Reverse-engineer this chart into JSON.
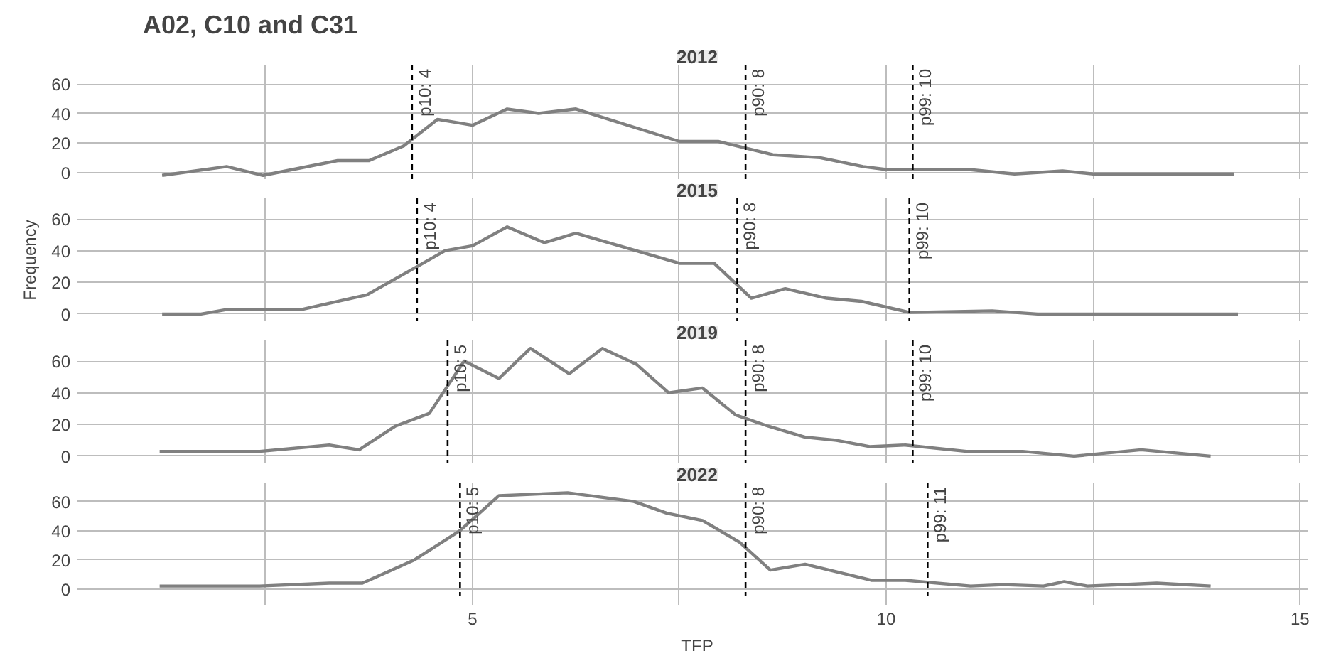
{
  "chart_data": [
    {
      "type": "line",
      "title": "2012",
      "subtitle": "A02, C10 and C31",
      "tick_labels": "y",
      "grid": true,
      "line_style": "solid",
      "color": "#808080",
      "x": [
        1.25,
        2.03,
        2.47,
        3.37,
        3.75,
        4.17,
        4.58,
        5,
        5.42,
        5.8,
        6.25,
        7.5,
        7.97,
        8.63,
        9.2,
        9.72,
        10,
        11,
        11.55,
        12.13,
        12.5,
        14.2
      ],
      "values": [
        -2,
        4,
        -2,
        8,
        8,
        18,
        36,
        32,
        43,
        40,
        43,
        21,
        21,
        12,
        10,
        4,
        2,
        2,
        -1,
        1,
        -1,
        -1
      ],
      "xlim": [
        0.33,
        15.1
      ],
      "xticks": [
        {
          "value": 2.5,
          "label": null
        },
        5,
        {
          "value": 7.5,
          "label": null
        },
        10,
        {
          "value": 12.5,
          "label": null
        },
        15
      ],
      "ylim": [
        -5,
        73
      ],
      "yticks": [
        0,
        20,
        40,
        60
      ],
      "ref_lines": [
        {
          "axis": "x",
          "value": 4.27,
          "label": "p10: 4",
          "line_style": "dashed",
          "color": "#000000"
        },
        {
          "axis": "x",
          "value": 8.3,
          "label": "p90: 8",
          "line_style": "dashed",
          "color": "#000000"
        },
        {
          "axis": "x",
          "value": 10.32,
          "label": "p99: 10",
          "line_style": "dashed",
          "color": "#000000"
        }
      ]
    },
    {
      "type": "line",
      "title": "2015",
      "ylabel": "Frequency",
      "tick_labels": "y",
      "grid": true,
      "line_style": "solid",
      "color": "#808080",
      "x": [
        1.25,
        1.72,
        2.05,
        2.95,
        3.72,
        4.3,
        4.67,
        5,
        5.42,
        5.87,
        6.25,
        7.5,
        7.92,
        8.37,
        8.78,
        9.28,
        9.7,
        10.28,
        11.28,
        11.83,
        12.5,
        14.25
      ],
      "values": [
        0,
        0,
        3,
        3,
        12,
        29,
        40,
        43,
        55,
        45,
        51,
        32,
        32,
        10,
        16,
        10,
        8,
        1,
        2,
        0,
        0,
        0
      ],
      "xlim": [
        0.33,
        15.1
      ],
      "xticks": [
        {
          "value": 2.5,
          "label": null
        },
        5,
        {
          "value": 7.5,
          "label": null
        },
        10,
        {
          "value": 12.5,
          "label": null
        },
        15
      ],
      "ylim": [
        -5,
        73
      ],
      "yticks": [
        0,
        20,
        40,
        60
      ],
      "ref_lines": [
        {
          "axis": "x",
          "value": 4.33,
          "label": "p10: 4",
          "line_style": "dashed",
          "color": "#000000"
        },
        {
          "axis": "x",
          "value": 8.2,
          "label": "p90: 8",
          "line_style": "dashed",
          "color": "#000000"
        },
        {
          "axis": "x",
          "value": 10.28,
          "label": "p99: 10",
          "line_style": "dashed",
          "color": "#000000"
        }
      ]
    },
    {
      "type": "line",
      "title": "2019",
      "tick_labels": "y",
      "grid": true,
      "line_style": "solid",
      "color": "#808080",
      "x": [
        1.22,
        2.43,
        3.27,
        3.63,
        4.07,
        4.48,
        4.9,
        5.32,
        5.7,
        6.17,
        6.57,
        6.98,
        7.37,
        7.78,
        8.18,
        8.57,
        9.02,
        9.4,
        9.8,
        10.23,
        10.97,
        11.65,
        12.27,
        13.08,
        13.92
      ],
      "values": [
        3,
        3,
        7,
        4,
        19,
        27,
        60,
        49,
        68,
        52,
        68,
        58,
        40,
        43,
        26,
        19,
        12,
        10,
        6,
        7,
        3,
        3,
        0,
        4,
        0
      ],
      "xlim": [
        0.33,
        15.1
      ],
      "xticks": [
        {
          "value": 2.5,
          "label": null
        },
        5,
        {
          "value": 7.5,
          "label": null
        },
        10,
        {
          "value": 12.5,
          "label": null
        },
        15
      ],
      "ylim": [
        -5,
        73
      ],
      "yticks": [
        0,
        20,
        40,
        60
      ],
      "ref_lines": [
        {
          "axis": "x",
          "value": 4.7,
          "label": "p10: 5",
          "line_style": "dashed",
          "color": "#000000"
        },
        {
          "axis": "x",
          "value": 8.3,
          "label": "p90: 8",
          "line_style": "dashed",
          "color": "#000000"
        },
        {
          "axis": "x",
          "value": 10.32,
          "label": "p99: 10",
          "line_style": "dashed",
          "color": "#000000"
        }
      ]
    },
    {
      "type": "line",
      "title": "2022",
      "xlabel": "TFP",
      "grid": true,
      "line_style": "solid",
      "color": "#808080",
      "x": [
        1.22,
        2.43,
        3.27,
        3.67,
        4.3,
        4.85,
        5.32,
        6.15,
        6.95,
        7.35,
        7.78,
        8.23,
        8.6,
        9.02,
        9.82,
        10.23,
        11.02,
        11.42,
        11.9,
        12.15,
        12.43,
        13.27,
        13.92
      ],
      "values": [
        2,
        2,
        4,
        4,
        20,
        40,
        64,
        66,
        60,
        52,
        47,
        32,
        13,
        17,
        6,
        6,
        2,
        3,
        2,
        5,
        2,
        4,
        2
      ],
      "xlim": [
        0.33,
        15.1
      ],
      "xticks": [
        {
          "value": 2.5,
          "label": null
        },
        5,
        {
          "value": 7.5,
          "label": null
        },
        10,
        {
          "value": 12.5,
          "label": null
        },
        15
      ],
      "ylim": [
        -5,
        73
      ],
      "yticks": [
        0,
        20,
        40,
        60
      ],
      "ref_lines": [
        {
          "axis": "x",
          "value": 4.85,
          "label": "p10: 5",
          "line_style": "dashed",
          "color": "#000000"
        },
        {
          "axis": "x",
          "value": 8.3,
          "label": "p90: 8",
          "line_style": "dashed",
          "color": "#000000"
        },
        {
          "axis": "x",
          "value": 10.5,
          "label": "p99: 11",
          "line_style": "dashed",
          "color": "#000000"
        }
      ]
    }
  ]
}
